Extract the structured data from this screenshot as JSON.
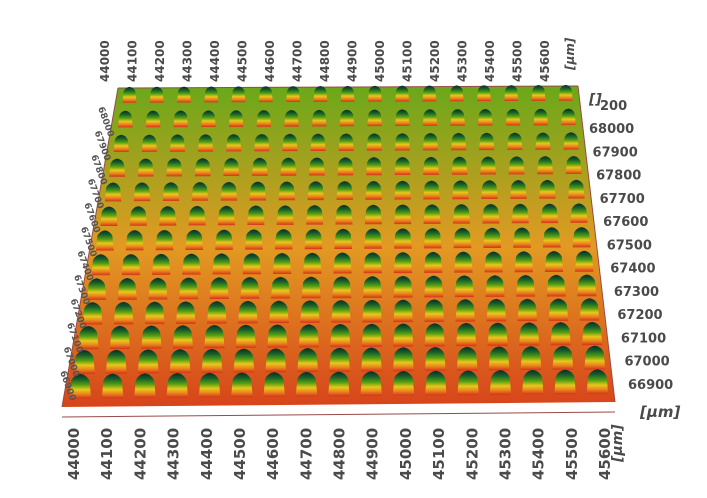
{
  "chart_data": {
    "type": "surface-3d",
    "title": "",
    "x_ticks": [
      "44000",
      "44100",
      "44200",
      "44300",
      "44400",
      "44500",
      "44600",
      "44700",
      "44800",
      "44900",
      "45000",
      "45100",
      "45200",
      "45300",
      "45400",
      "45500",
      "45600"
    ],
    "y_ticks": [
      "66900",
      "67000",
      "67100",
      "67200",
      "67300",
      "67400",
      "67500",
      "67600",
      "67700",
      "67800",
      "67900",
      "68000"
    ],
    "z_ticks": [
      "200"
    ],
    "x_unit": "[µm]",
    "y_unit": "[µm]",
    "z_unit": "[]",
    "xlim": [
      44000,
      45650
    ],
    "ylim": [
      66850,
      68050
    ],
    "pillar_grid": {
      "columns": 17,
      "rows": 13
    },
    "colormap": [
      "#c62a10",
      "#e8701c",
      "#f2c21a",
      "#5ea30f",
      "#1a6a24",
      "#0c2b26"
    ]
  }
}
